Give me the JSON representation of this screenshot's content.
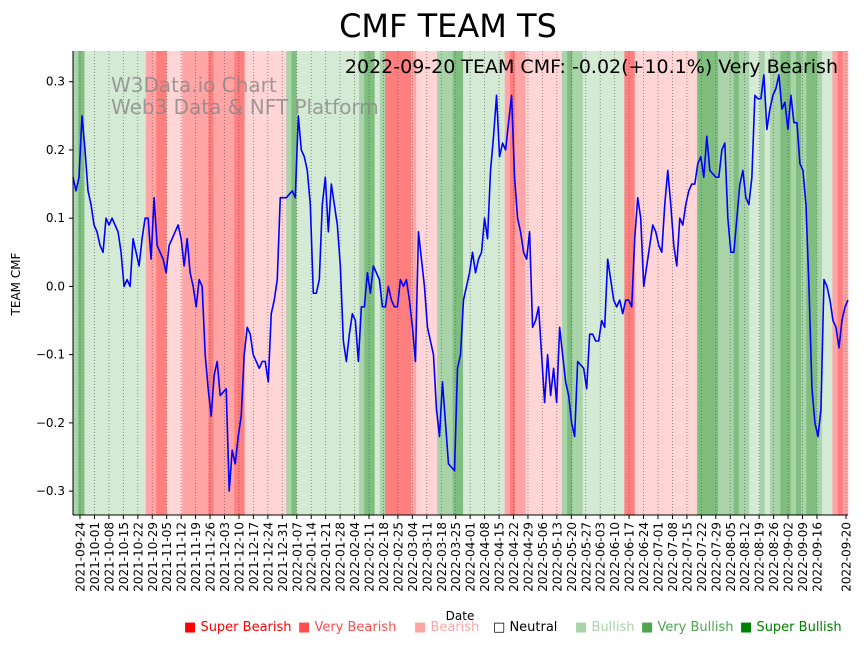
{
  "chart_data": {
    "type": "line",
    "title": "CMF TEAM TS",
    "annotation": "2022-09-20 TEAM CMF: -0.02(+10.1%) Very Bearish",
    "watermark": [
      "W3Data.io Chart",
      "Web3 Data & NFT Platform"
    ],
    "xlabel": "Date",
    "ylabel": "TEAM CMF",
    "ylim": [
      -0.335,
      0.345
    ],
    "xlim": [
      "2021-09-24",
      "2022-09-20"
    ],
    "y_ticks": [
      -0.3,
      -0.2,
      -0.1,
      0.0,
      0.1,
      0.2,
      0.3
    ],
    "y_tick_labels": [
      "−0.3",
      "−0.2",
      "−0.1",
      "0.0",
      "0.1",
      "0.2",
      "0.3"
    ],
    "x_tick_labels": [
      "2021-09-24",
      "2021-10-01",
      "2021-10-08",
      "2021-10-15",
      "2021-10-22",
      "2021-10-29",
      "2021-11-05",
      "2021-11-12",
      "2021-11-19",
      "2021-11-26",
      "2021-12-03",
      "2021-12-10",
      "2021-12-17",
      "2021-12-24",
      "2021-12-31",
      "2022-01-07",
      "2022-01-14",
      "2022-01-21",
      "2022-01-28",
      "2022-02-04",
      "2022-02-11",
      "2022-02-18",
      "2022-02-25",
      "2022-03-04",
      "2022-03-11",
      "2022-03-18",
      "2022-03-25",
      "2022-04-01",
      "2022-04-08",
      "2022-04-15",
      "2022-04-22",
      "2022-04-29",
      "2022-05-06",
      "2022-05-13",
      "2022-05-20",
      "2022-05-27",
      "2022-06-03",
      "2022-06-10",
      "2022-06-17",
      "2022-06-24",
      "2022-07-01",
      "2022-07-08",
      "2022-07-15",
      "2022-07-22",
      "2022-07-29",
      "2022-08-05",
      "2022-08-12",
      "2022-08-19",
      "2022-08-26",
      "2022-09-02",
      "2022-09-09",
      "2022-09-16",
      "2022-09-20"
    ],
    "series": [
      {
        "name": "TEAM CMF",
        "color": "#0000ff",
        "values": [
          0.16,
          0.14,
          0.16,
          0.25,
          0.2,
          0.14,
          0.12,
          0.09,
          0.08,
          0.06,
          0.05,
          0.1,
          0.09,
          0.1,
          0.09,
          0.08,
          0.05,
          0.0,
          0.01,
          0.0,
          0.07,
          0.05,
          0.03,
          0.07,
          0.1,
          0.1,
          0.04,
          0.13,
          0.06,
          0.05,
          0.04,
          0.02,
          0.06,
          0.07,
          0.08,
          0.09,
          0.07,
          0.03,
          0.07,
          0.02,
          0.0,
          -0.03,
          0.01,
          0.0,
          -0.1,
          -0.15,
          -0.19,
          -0.13,
          -0.11,
          -0.16,
          -0.155,
          -0.15,
          -0.3,
          -0.24,
          -0.26,
          -0.22,
          -0.19,
          -0.1,
          -0.06,
          -0.07,
          -0.1,
          -0.11,
          -0.12,
          -0.11,
          -0.11,
          -0.14,
          -0.04,
          -0.02,
          0.01,
          0.13,
          0.13,
          0.13,
          0.135,
          0.14,
          0.13,
          0.25,
          0.2,
          0.19,
          0.17,
          0.12,
          -0.01,
          -0.01,
          0.01,
          0.12,
          0.16,
          0.08,
          0.15,
          0.12,
          0.09,
          0.03,
          -0.08,
          -0.11,
          -0.07,
          -0.04,
          -0.05,
          -0.11,
          -0.03,
          -0.03,
          0.02,
          -0.01,
          0.03,
          0.02,
          0.01,
          -0.03,
          -0.03,
          0.0,
          -0.02,
          -0.03,
          -0.03,
          0.01,
          0.0,
          0.01,
          -0.02,
          -0.06,
          -0.11,
          0.08,
          0.04,
          0.0,
          -0.06,
          -0.08,
          -0.1,
          -0.18,
          -0.22,
          -0.14,
          -0.2,
          -0.26,
          -0.265,
          -0.27,
          -0.12,
          -0.1,
          -0.02,
          0.0,
          0.02,
          0.05,
          0.02,
          0.04,
          0.05,
          0.1,
          0.07,
          0.17,
          0.22,
          0.28,
          0.19,
          0.21,
          0.2,
          0.24,
          0.28,
          0.16,
          0.1,
          0.08,
          0.05,
          0.04,
          0.08,
          -0.06,
          -0.05,
          -0.03,
          -0.1,
          -0.17,
          -0.1,
          -0.16,
          -0.12,
          -0.17,
          -0.06,
          -0.1,
          -0.14,
          -0.16,
          -0.2,
          -0.22,
          -0.11,
          -0.115,
          -0.12,
          -0.15,
          -0.07,
          -0.07,
          -0.08,
          -0.08,
          -0.05,
          -0.06,
          0.04,
          0.01,
          -0.02,
          -0.03,
          -0.02,
          -0.04,
          -0.02,
          -0.02,
          -0.03,
          0.07,
          0.13,
          0.1,
          0.0,
          0.03,
          0.06,
          0.09,
          0.08,
          0.06,
          0.05,
          0.12,
          0.17,
          0.12,
          0.06,
          0.03,
          0.1,
          0.09,
          0.12,
          0.14,
          0.15,
          0.15,
          0.18,
          0.19,
          0.16,
          0.22,
          0.17,
          0.165,
          0.16,
          0.16,
          0.2,
          0.21,
          0.1,
          0.05,
          0.05,
          0.1,
          0.15,
          0.17,
          0.13,
          0.12,
          0.16,
          0.28,
          0.275,
          0.275,
          0.31,
          0.23,
          0.26,
          0.28,
          0.29,
          0.31,
          0.26,
          0.27,
          0.23,
          0.28,
          0.24,
          0.24,
          0.18,
          0.17,
          0.12,
          0.0,
          -0.15,
          -0.2,
          -0.22,
          -0.18,
          0.01,
          0.0,
          -0.02,
          -0.05,
          -0.06,
          -0.09,
          -0.05,
          -0.03,
          -0.02
        ]
      }
    ],
    "regions": [
      {
        "start": 0,
        "end": 1,
        "cls": "vbull"
      },
      {
        "start": 1,
        "end": 2.2,
        "cls": "sbull"
      },
      {
        "start": 2.2,
        "end": 14,
        "cls": "bull"
      },
      {
        "start": 14,
        "end": 16,
        "cls": "vbear"
      },
      {
        "start": 16,
        "end": 18,
        "cls": "sbear"
      },
      {
        "start": 18,
        "end": 21,
        "cls": "bear"
      },
      {
        "start": 21,
        "end": 26,
        "cls": "vbear"
      },
      {
        "start": 26,
        "end": 27,
        "cls": "sbear"
      },
      {
        "start": 27,
        "end": 31,
        "cls": "vbear"
      },
      {
        "start": 31,
        "end": 33,
        "cls": "sbear"
      },
      {
        "start": 33,
        "end": 41,
        "cls": "bear"
      },
      {
        "start": 41,
        "end": 42,
        "cls": "vbull"
      },
      {
        "start": 42,
        "end": 43,
        "cls": "sbull"
      },
      {
        "start": 43,
        "end": 55,
        "cls": "bull"
      },
      {
        "start": 55,
        "end": 56,
        "cls": "vbull"
      },
      {
        "start": 56,
        "end": 58,
        "cls": "sbull"
      },
      {
        "start": 58,
        "end": 59,
        "cls": "bull"
      },
      {
        "start": 59,
        "end": 60,
        "cls": "vbull"
      },
      {
        "start": 60,
        "end": 65,
        "cls": "sbear"
      },
      {
        "start": 65,
        "end": 66,
        "cls": "vbear"
      },
      {
        "start": 66,
        "end": 70,
        "cls": "bear"
      },
      {
        "start": 70,
        "end": 73,
        "cls": "vbull"
      },
      {
        "start": 73,
        "end": 75,
        "cls": "sbull"
      },
      {
        "start": 75,
        "end": 83,
        "cls": "bull"
      },
      {
        "start": 83,
        "end": 84,
        "cls": "vbear"
      },
      {
        "start": 84,
        "end": 85,
        "cls": "sbear"
      },
      {
        "start": 85,
        "end": 87,
        "cls": "vbear"
      },
      {
        "start": 87,
        "end": 94,
        "cls": "bear"
      },
      {
        "start": 94,
        "end": 95,
        "cls": "vbull"
      },
      {
        "start": 95,
        "end": 96,
        "cls": "sbull"
      },
      {
        "start": 96,
        "end": 98,
        "cls": "vbull"
      },
      {
        "start": 98,
        "end": 106,
        "cls": "bull"
      },
      {
        "start": 106,
        "end": 108,
        "cls": "sbear"
      },
      {
        "start": 108,
        "end": 120,
        "cls": "bear"
      },
      {
        "start": 120,
        "end": 124,
        "cls": "sbull"
      },
      {
        "start": 124,
        "end": 127,
        "cls": "vbull"
      },
      {
        "start": 127,
        "end": 128,
        "cls": "sbull"
      },
      {
        "start": 128,
        "end": 130,
        "cls": "vbull"
      },
      {
        "start": 130,
        "end": 132,
        "cls": "bull"
      },
      {
        "start": 132,
        "end": 133,
        "cls": "vbull"
      },
      {
        "start": 133,
        "end": 134,
        "cls": "bull"
      },
      {
        "start": 134,
        "end": 136,
        "cls": "vbull"
      },
      {
        "start": 136,
        "end": 138,
        "cls": "sbull"
      },
      {
        "start": 138,
        "end": 139,
        "cls": "vbull"
      },
      {
        "start": 139,
        "end": 140,
        "cls": "sbull"
      },
      {
        "start": 140,
        "end": 141,
        "cls": "vbull"
      },
      {
        "start": 141,
        "end": 143,
        "cls": "sbull"
      },
      {
        "start": 143,
        "end": 144,
        "cls": "vbull"
      },
      {
        "start": 144,
        "end": 146,
        "cls": "bull"
      },
      {
        "start": 146,
        "end": 147,
        "cls": "vbear"
      },
      {
        "start": 147,
        "end": 148,
        "cls": "sbear"
      },
      {
        "start": 148,
        "end": 149,
        "cls": "vbear"
      }
    ],
    "region_colors": {
      "sbear": "#ff7f7f",
      "vbear": "#ffa5a5",
      "bear": "#ffd5d5",
      "bull": "#d5ead5",
      "vbull": "#a9d4a9",
      "sbull": "#7fbe7f"
    },
    "legend": [
      {
        "label": "Super Bearish",
        "color": "#ff0000",
        "marker": "■"
      },
      {
        "label": "Very Bearish",
        "color": "#ff4d4d",
        "marker": "■"
      },
      {
        "label": "Bearish",
        "color": "#ffa5a5",
        "marker": "■"
      },
      {
        "label": "Neutral",
        "color": "#000000",
        "marker": "□"
      },
      {
        "label": "Bullish",
        "color": "#a9d4a9",
        "marker": "■"
      },
      {
        "label": "Very Bullish",
        "color": "#4da64d",
        "marker": "■"
      },
      {
        "label": "Super Bullish",
        "color": "#008000",
        "marker": "■"
      }
    ]
  }
}
